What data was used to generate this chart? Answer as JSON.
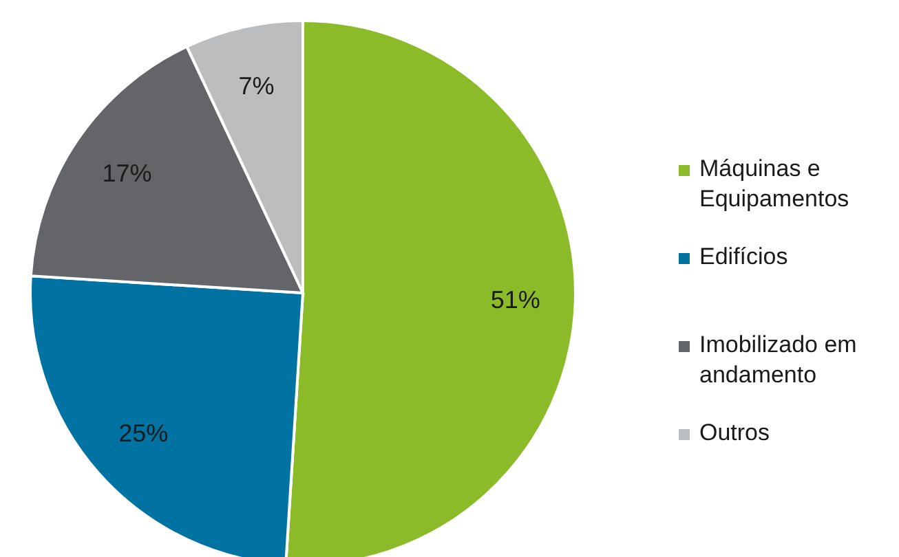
{
  "chart_data": {
    "type": "pie",
    "categories": [
      "Máquinas e Equipamentos",
      "Edifícios",
      "Imobilizado em andamento",
      "Outros"
    ],
    "values": [
      51,
      25,
      17,
      7
    ],
    "colors": [
      "#8cbb2a",
      "#0073a3",
      "#646569",
      "#bcbdbf"
    ],
    "value_labels": [
      "51%",
      "25%",
      "17%",
      "7%"
    ],
    "legend": "right"
  }
}
